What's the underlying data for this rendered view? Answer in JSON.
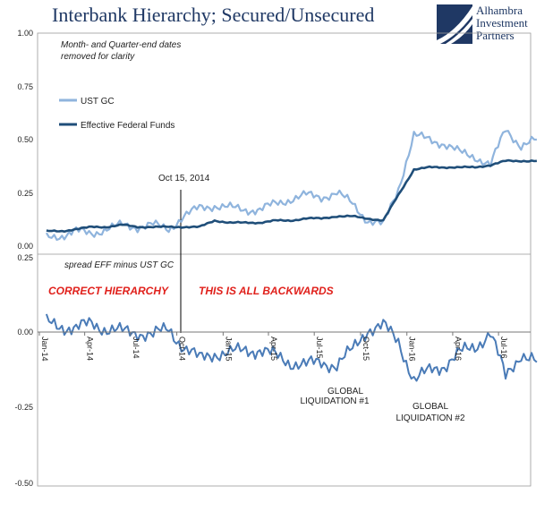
{
  "title": "Interbank Hierarchy; Secured/Unsecured",
  "logo": {
    "icon": "alhambra-logo-icon",
    "lines": [
      "Alhambra",
      "Investment",
      "Partners"
    ],
    "color": "#1f3864"
  },
  "colors": {
    "ust_gc": "#8fb4dd",
    "eff": "#1f4e79",
    "spread": "#4a7bb7",
    "annotation_red": "#e0201b"
  },
  "chart_data": [
    {
      "type": "line",
      "panel": "top",
      "ylim": [
        0,
        1.0
      ],
      "yticks": [
        "1.00",
        "0.75",
        "0.50",
        "0.25",
        "0.00"
      ],
      "ytick_values": [
        1.0,
        0.75,
        0.5,
        0.25,
        0.0
      ],
      "x_range": [
        "2014-01-01",
        "2016-09-01"
      ],
      "notes": [
        "Month- and Quarter-end dates",
        "removed for clarity"
      ],
      "event": {
        "label": "Oct 15, 2014",
        "date": "2014-10-15"
      },
      "legend": [
        "UST GC",
        "Effective Federal Funds"
      ],
      "legend_placement": "upper-left",
      "series": [
        {
          "name": "UST GC",
          "x": [
            "2014-01",
            "2014-02",
            "2014-03",
            "2014-04",
            "2014-05",
            "2014-06",
            "2014-07",
            "2014-08",
            "2014-09",
            "2014-10",
            "2014-11",
            "2014-12",
            "2015-01",
            "2015-02",
            "2015-03",
            "2015-04",
            "2015-05",
            "2015-06",
            "2015-07",
            "2015-08",
            "2015-09",
            "2015-10",
            "2015-11",
            "2015-12",
            "2016-01",
            "2016-02",
            "2016-03",
            "2016-04",
            "2016-05",
            "2016-06",
            "2016-07",
            "2016-08",
            "2016-09"
          ],
          "values": [
            0.04,
            0.05,
            0.07,
            0.06,
            0.08,
            0.1,
            0.09,
            0.1,
            0.08,
            0.14,
            0.18,
            0.19,
            0.18,
            0.17,
            0.17,
            0.2,
            0.22,
            0.24,
            0.23,
            0.25,
            0.2,
            0.12,
            0.1,
            0.27,
            0.52,
            0.5,
            0.48,
            0.44,
            0.42,
            0.38,
            0.55,
            0.47,
            0.5
          ]
        },
        {
          "name": "Effective Federal Funds",
          "x": [
            "2014-01",
            "2014-02",
            "2014-03",
            "2014-04",
            "2014-05",
            "2014-06",
            "2014-07",
            "2014-08",
            "2014-09",
            "2014-10",
            "2014-11",
            "2014-12",
            "2015-01",
            "2015-02",
            "2015-03",
            "2015-04",
            "2015-05",
            "2015-06",
            "2015-07",
            "2015-08",
            "2015-09",
            "2015-10",
            "2015-11",
            "2015-12",
            "2016-01",
            "2016-02",
            "2016-03",
            "2016-04",
            "2016-05",
            "2016-06",
            "2016-07",
            "2016-08",
            "2016-09"
          ],
          "values": [
            0.07,
            0.07,
            0.08,
            0.09,
            0.09,
            0.1,
            0.09,
            0.09,
            0.09,
            0.09,
            0.09,
            0.12,
            0.11,
            0.11,
            0.11,
            0.12,
            0.12,
            0.13,
            0.13,
            0.14,
            0.14,
            0.13,
            0.12,
            0.24,
            0.36,
            0.37,
            0.37,
            0.37,
            0.37,
            0.38,
            0.4,
            0.4,
            0.4
          ]
        }
      ]
    },
    {
      "type": "line",
      "panel": "bottom",
      "ylim": [
        -0.5,
        0.25
      ],
      "yticks": [
        "0.25",
        "0.00",
        "-0.25",
        "-0.50"
      ],
      "ytick_values": [
        0.25,
        0.0,
        -0.25,
        -0.5
      ],
      "note": "spread EFF minus UST GC",
      "labels": [
        "CORRECT HIERARCHY",
        "THIS IS ALL BACKWARDS"
      ],
      "annotations": [
        "GLOBAL",
        "LIQUIDATION #1",
        "GLOBAL",
        "LIQUIDATION #2"
      ],
      "xticks": [
        "Jan-14",
        "Apr-14",
        "Jul-14",
        "Oct-14",
        "Jan-15",
        "Apr-15",
        "Jul-15",
        "Oct-15",
        "Jan-16",
        "Apr-16",
        "Jul-16"
      ],
      "series": [
        {
          "name": "spread EFF minus UST GC",
          "x": [
            "2014-01",
            "2014-02",
            "2014-03",
            "2014-04",
            "2014-05",
            "2014-06",
            "2014-07",
            "2014-08",
            "2014-09",
            "2014-10",
            "2014-11",
            "2014-12",
            "2015-01",
            "2015-02",
            "2015-03",
            "2015-04",
            "2015-05",
            "2015-06",
            "2015-07",
            "2015-08",
            "2015-09",
            "2015-10",
            "2015-11",
            "2015-12",
            "2016-01",
            "2016-02",
            "2016-03",
            "2016-04",
            "2016-05",
            "2016-06",
            "2016-07",
            "2016-08",
            "2016-09"
          ],
          "values": [
            0.03,
            0.02,
            0.01,
            0.03,
            0.01,
            0.0,
            0.0,
            -0.01,
            0.01,
            -0.05,
            -0.09,
            -0.07,
            -0.07,
            -0.06,
            -0.06,
            -0.08,
            -0.1,
            -0.11,
            -0.1,
            -0.11,
            -0.06,
            0.01,
            0.02,
            -0.03,
            -0.16,
            -0.13,
            -0.11,
            -0.07,
            -0.05,
            0.0,
            -0.15,
            -0.07,
            -0.1
          ]
        }
      ]
    }
  ]
}
